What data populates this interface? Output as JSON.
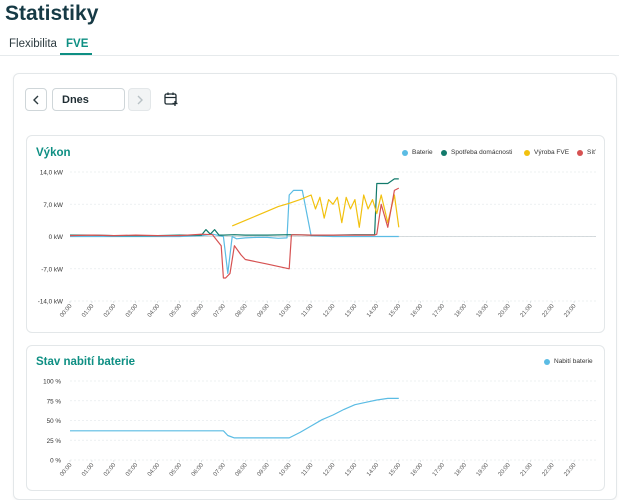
{
  "page": {
    "title": "Statistiky"
  },
  "tabs": [
    {
      "label": "Flexibilita",
      "active": false
    },
    {
      "label": "FVE",
      "active": true
    }
  ],
  "toolbar": {
    "prev_icon": "chevron-left-icon",
    "date_label": "Dnes",
    "next_icon": "chevron-right-icon",
    "next_disabled": true,
    "calendar_icon": "calendar-plus-icon"
  },
  "colors": {
    "accent": "#0e8f83",
    "baterie": "#5bbce4",
    "spotreba": "#127a6b",
    "vyroba": "#f2c10f",
    "sit": "#d65252"
  },
  "chart_power": {
    "title": "Výkon",
    "legend": [
      "Baterie",
      "Spotřeba domácnosti",
      "Výroba FVE",
      "Síť"
    ],
    "y_ticks": [
      "14,0 kW",
      "7,0 kW",
      "0 kW",
      "-7,0 kW",
      "-14,0 kW"
    ]
  },
  "chart_battery": {
    "title": "Stav nabití baterie",
    "legend": [
      "Nabití baterie"
    ],
    "y_ticks": [
      "100 %",
      "75 %",
      "50 %",
      "25 %",
      "0 %"
    ]
  },
  "x_ticks": [
    "00:00",
    "01:00",
    "02:00",
    "03:00",
    "04:00",
    "05:00",
    "06:00",
    "07:00",
    "08:00",
    "09:00",
    "10:00",
    "11:00",
    "12:00",
    "13:00",
    "14:00",
    "15:00",
    "16:00",
    "17:00",
    "18:00",
    "19:00",
    "20:00",
    "21:00",
    "22:00",
    "23:00"
  ],
  "chart_data": [
    {
      "type": "line",
      "title": "Výkon",
      "ylabel": "kW",
      "ylim": [
        -14,
        14
      ],
      "grid": true,
      "legend_position": "top-right",
      "series": [
        {
          "name": "Baterie",
          "color": "#5bbce4",
          "x": [
            0,
            1,
            2,
            3,
            4,
            5,
            6,
            6.5,
            7,
            7.2,
            7.4,
            7.6,
            8,
            8.5,
            9,
            9.5,
            9.9,
            10,
            10.2,
            10.6,
            11,
            12,
            13,
            14,
            14.5,
            15
          ],
          "y": [
            0,
            0,
            0,
            0,
            0,
            0,
            0.2,
            0.5,
            0,
            -8,
            0,
            -0.5,
            -0.3,
            -0.2,
            -0.2,
            -0.4,
            -0.3,
            9,
            10,
            10,
            0.2,
            0,
            0,
            0,
            0,
            0
          ]
        },
        {
          "name": "Spotřeba domácnosti",
          "color": "#127a6b",
          "x": [
            0,
            1,
            2,
            3,
            4,
            5,
            6,
            6.2,
            6.4,
            6.6,
            6.8,
            7,
            7.5,
            8,
            9,
            10,
            11,
            12,
            13,
            13.9,
            14,
            14.5,
            14.8,
            15
          ],
          "y": [
            0.3,
            0.3,
            0.2,
            0.2,
            0.2,
            0.3,
            0.3,
            1.5,
            0.5,
            1.5,
            0.3,
            0.3,
            0.4,
            0.3,
            0.3,
            0.4,
            0.3,
            0.3,
            0.4,
            0.4,
            11.5,
            11.5,
            12.5,
            12.5
          ]
        },
        {
          "name": "Výroba FVE",
          "color": "#f2c10f",
          "x": [
            7.4,
            8,
            8.5,
            9,
            9.5,
            10,
            10.5,
            11,
            11.2,
            11.4,
            11.6,
            11.8,
            12,
            12.2,
            12.4,
            12.6,
            12.8,
            13,
            13.2,
            13.4,
            13.6,
            13.8,
            14,
            14.2,
            14.5,
            14.8,
            15
          ],
          "y": [
            2.3,
            3.5,
            4.5,
            5.5,
            6.5,
            7.2,
            8,
            9,
            6,
            8.5,
            4,
            8,
            7,
            8.5,
            3,
            8.5,
            6,
            8,
            2,
            9,
            6,
            8,
            5,
            9,
            3,
            9,
            2
          ]
        },
        {
          "name": "Síť",
          "color": "#d65252",
          "x": [
            0,
            1,
            2,
            3,
            4,
            5,
            6,
            6.5,
            6.9,
            7,
            7.1,
            7.3,
            7.5,
            7.8,
            8,
            8.5,
            9,
            9.5,
            10,
            10.1,
            10.2,
            11,
            12,
            13,
            13.9,
            14,
            14.2,
            14.5,
            14.8,
            15
          ],
          "y": [
            0.2,
            0.3,
            0.2,
            0.3,
            0.2,
            0.2,
            0.5,
            0.4,
            -2,
            -9,
            -9,
            -8,
            -2,
            -4,
            -5,
            -5.5,
            -6,
            -6.5,
            -7,
            0.3,
            0.4,
            0.3,
            0.3,
            0.3,
            0.3,
            0.5,
            7,
            2,
            10,
            10.5
          ]
        }
      ]
    },
    {
      "type": "line",
      "title": "Stav nabití baterie",
      "ylabel": "%",
      "ylim": [
        0,
        100
      ],
      "grid": true,
      "legend_position": "top-right",
      "series": [
        {
          "name": "Nabití baterie",
          "color": "#5bbce4",
          "x": [
            0,
            1,
            2,
            3,
            4,
            5,
            6,
            7,
            7.2,
            7.5,
            8,
            9,
            10,
            10.5,
            11,
            11.5,
            12,
            12.5,
            13,
            13.5,
            14,
            14.5,
            15
          ],
          "y": [
            37,
            37,
            37,
            37,
            37,
            37,
            37,
            37,
            31,
            28,
            28,
            28,
            28,
            35,
            43,
            51,
            57,
            64,
            70,
            73,
            76,
            78,
            78
          ]
        }
      ]
    }
  ]
}
